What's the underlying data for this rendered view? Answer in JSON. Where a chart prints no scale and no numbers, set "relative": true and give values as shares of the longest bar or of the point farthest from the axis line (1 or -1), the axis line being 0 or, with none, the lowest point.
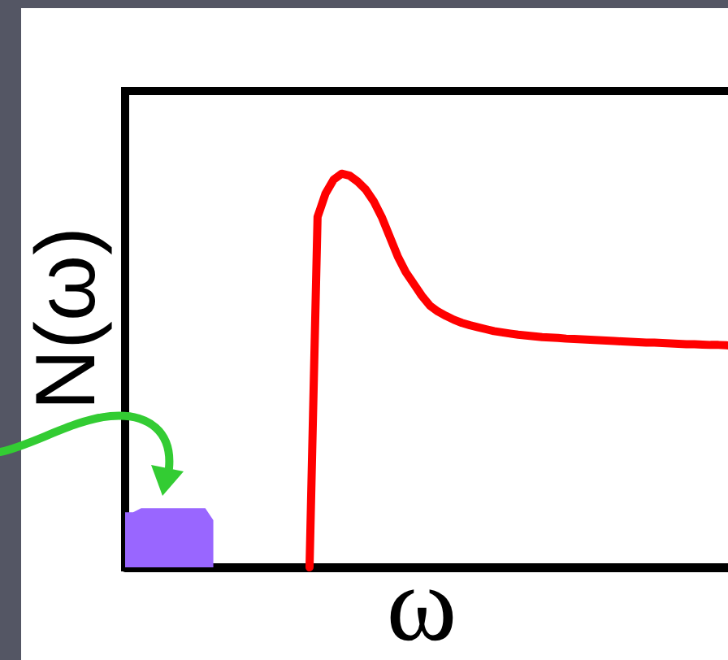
{
  "chart_data": {
    "type": "line",
    "xlabel": "ω",
    "ylabel": "N(ω)",
    "relative": true,
    "tick_labels": false,
    "marker": "none",
    "line_style": "solid",
    "categories": [
      null,
      null,
      null,
      null,
      null,
      null,
      null,
      null,
      null,
      null,
      null,
      null,
      null,
      null,
      null,
      null,
      null,
      null,
      null,
      null,
      null,
      null,
      null,
      null,
      null,
      null,
      null,
      null,
      null,
      null,
      null,
      null,
      null,
      null,
      null,
      null,
      null,
      null,
      null,
      null,
      null,
      null,
      null,
      null,
      null,
      null,
      null,
      null,
      null,
      null,
      null,
      null,
      null,
      null,
      null,
      null,
      null,
      null,
      null,
      null,
      null,
      null,
      null,
      null,
      null,
      null,
      null,
      null,
      null,
      null,
      null,
      null,
      null,
      null,
      null,
      null,
      null
    ],
    "series": [
      {
        "color": "#ff0000",
        "values": [
          null,
          null,
          null,
          null,
          null,
          null,
          null,
          null,
          null,
          null,
          null,
          null,
          null,
          null,
          null,
          null,
          null,
          null,
          null,
          null,
          null,
          null,
          null,
          0,
          0.89,
          0.95,
          0.985,
          1,
          0.995,
          0.98,
          0.96,
          0.93,
          0.89,
          0.84,
          0.79,
          0.75,
          0.72,
          0.69,
          0.665,
          0.65,
          0.639,
          0.629,
          0.621,
          0.615,
          0.61,
          0.605,
          0.6,
          0.597,
          0.594,
          0.591,
          0.589,
          0.587,
          0.585,
          0.584,
          0.583,
          0.581,
          0.58,
          0.579,
          0.578,
          0.577,
          0.576,
          0.575,
          0.574,
          0.573,
          0.572,
          0.571,
          0.571,
          0.57,
          0.569,
          0.568,
          0.567,
          0.567,
          0.566,
          0.565,
          0.565,
          0.564,
          0.563
        ]
      },
      {
        "type": "area",
        "color": "#9966ff",
        "values": [
          0.14,
          0.14,
          0.15,
          0.15,
          0.15,
          0.15,
          0.15,
          0.15,
          0.15,
          0.15,
          0.15,
          0.12,
          null,
          null,
          null,
          null,
          null,
          null,
          null,
          null,
          null,
          null,
          null,
          null,
          null,
          null,
          null,
          null,
          null,
          null,
          null,
          null,
          null,
          null,
          null,
          null,
          null,
          null,
          null,
          null,
          null,
          null,
          null,
          null,
          null,
          null,
          null,
          null,
          null,
          null,
          null,
          null,
          null,
          null,
          null,
          null,
          null,
          null,
          null,
          null,
          null,
          null,
          null,
          null,
          null,
          null,
          null,
          null,
          null,
          null,
          null,
          null,
          null,
          null,
          null,
          null,
          null
        ]
      }
    ]
  }
}
